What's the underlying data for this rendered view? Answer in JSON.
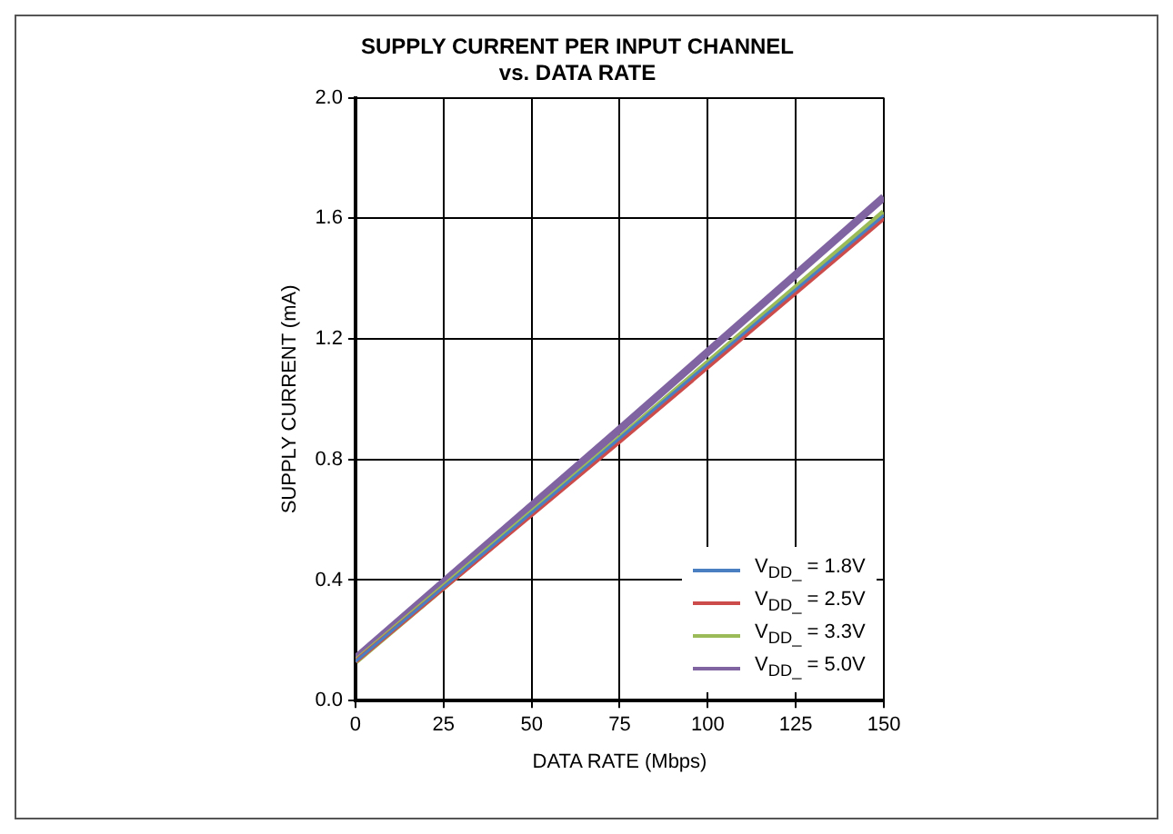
{
  "chart_data": {
    "type": "line",
    "title": "SUPPLY CURRENT PER INPUT CHANNEL\nvs. DATA RATE",
    "xlabel": "DATA RATE (Mbps)",
    "ylabel": "SUPPLY CURRENT (mA)",
    "x": [
      0,
      75,
      150
    ],
    "series": [
      {
        "name": "V$_{DD_}$ = 1.8V",
        "color": "#4a7fc1",
        "values": [
          0.13,
          0.87,
          1.61
        ]
      },
      {
        "name": "V$_{DD_}$ = 2.5V",
        "color": "#cc4b4b",
        "values": [
          0.13,
          0.86,
          1.6
        ]
      },
      {
        "name": "V$_{DD_}$ = 3.3V",
        "color": "#9bbb59",
        "values": [
          0.13,
          0.87,
          1.62
        ]
      },
      {
        "name": "V$_{DD_}$ = 5.0V",
        "color": "#8064a2",
        "values": [
          0.14,
          0.9,
          1.67
        ]
      }
    ],
    "xlim": [
      0,
      150
    ],
    "xticks": [
      0,
      25,
      50,
      75,
      100,
      125,
      150
    ],
    "ylim": [
      0,
      2
    ],
    "yticks": [
      {
        "value": 0,
        "label": "0.0"
      },
      0.4,
      0.8,
      1.2,
      1.6,
      {
        "value": 2,
        "label": "2.0"
      }
    ],
    "grid": true,
    "legend": "bottom right",
    "marker": "none",
    "line_style": "solid"
  }
}
